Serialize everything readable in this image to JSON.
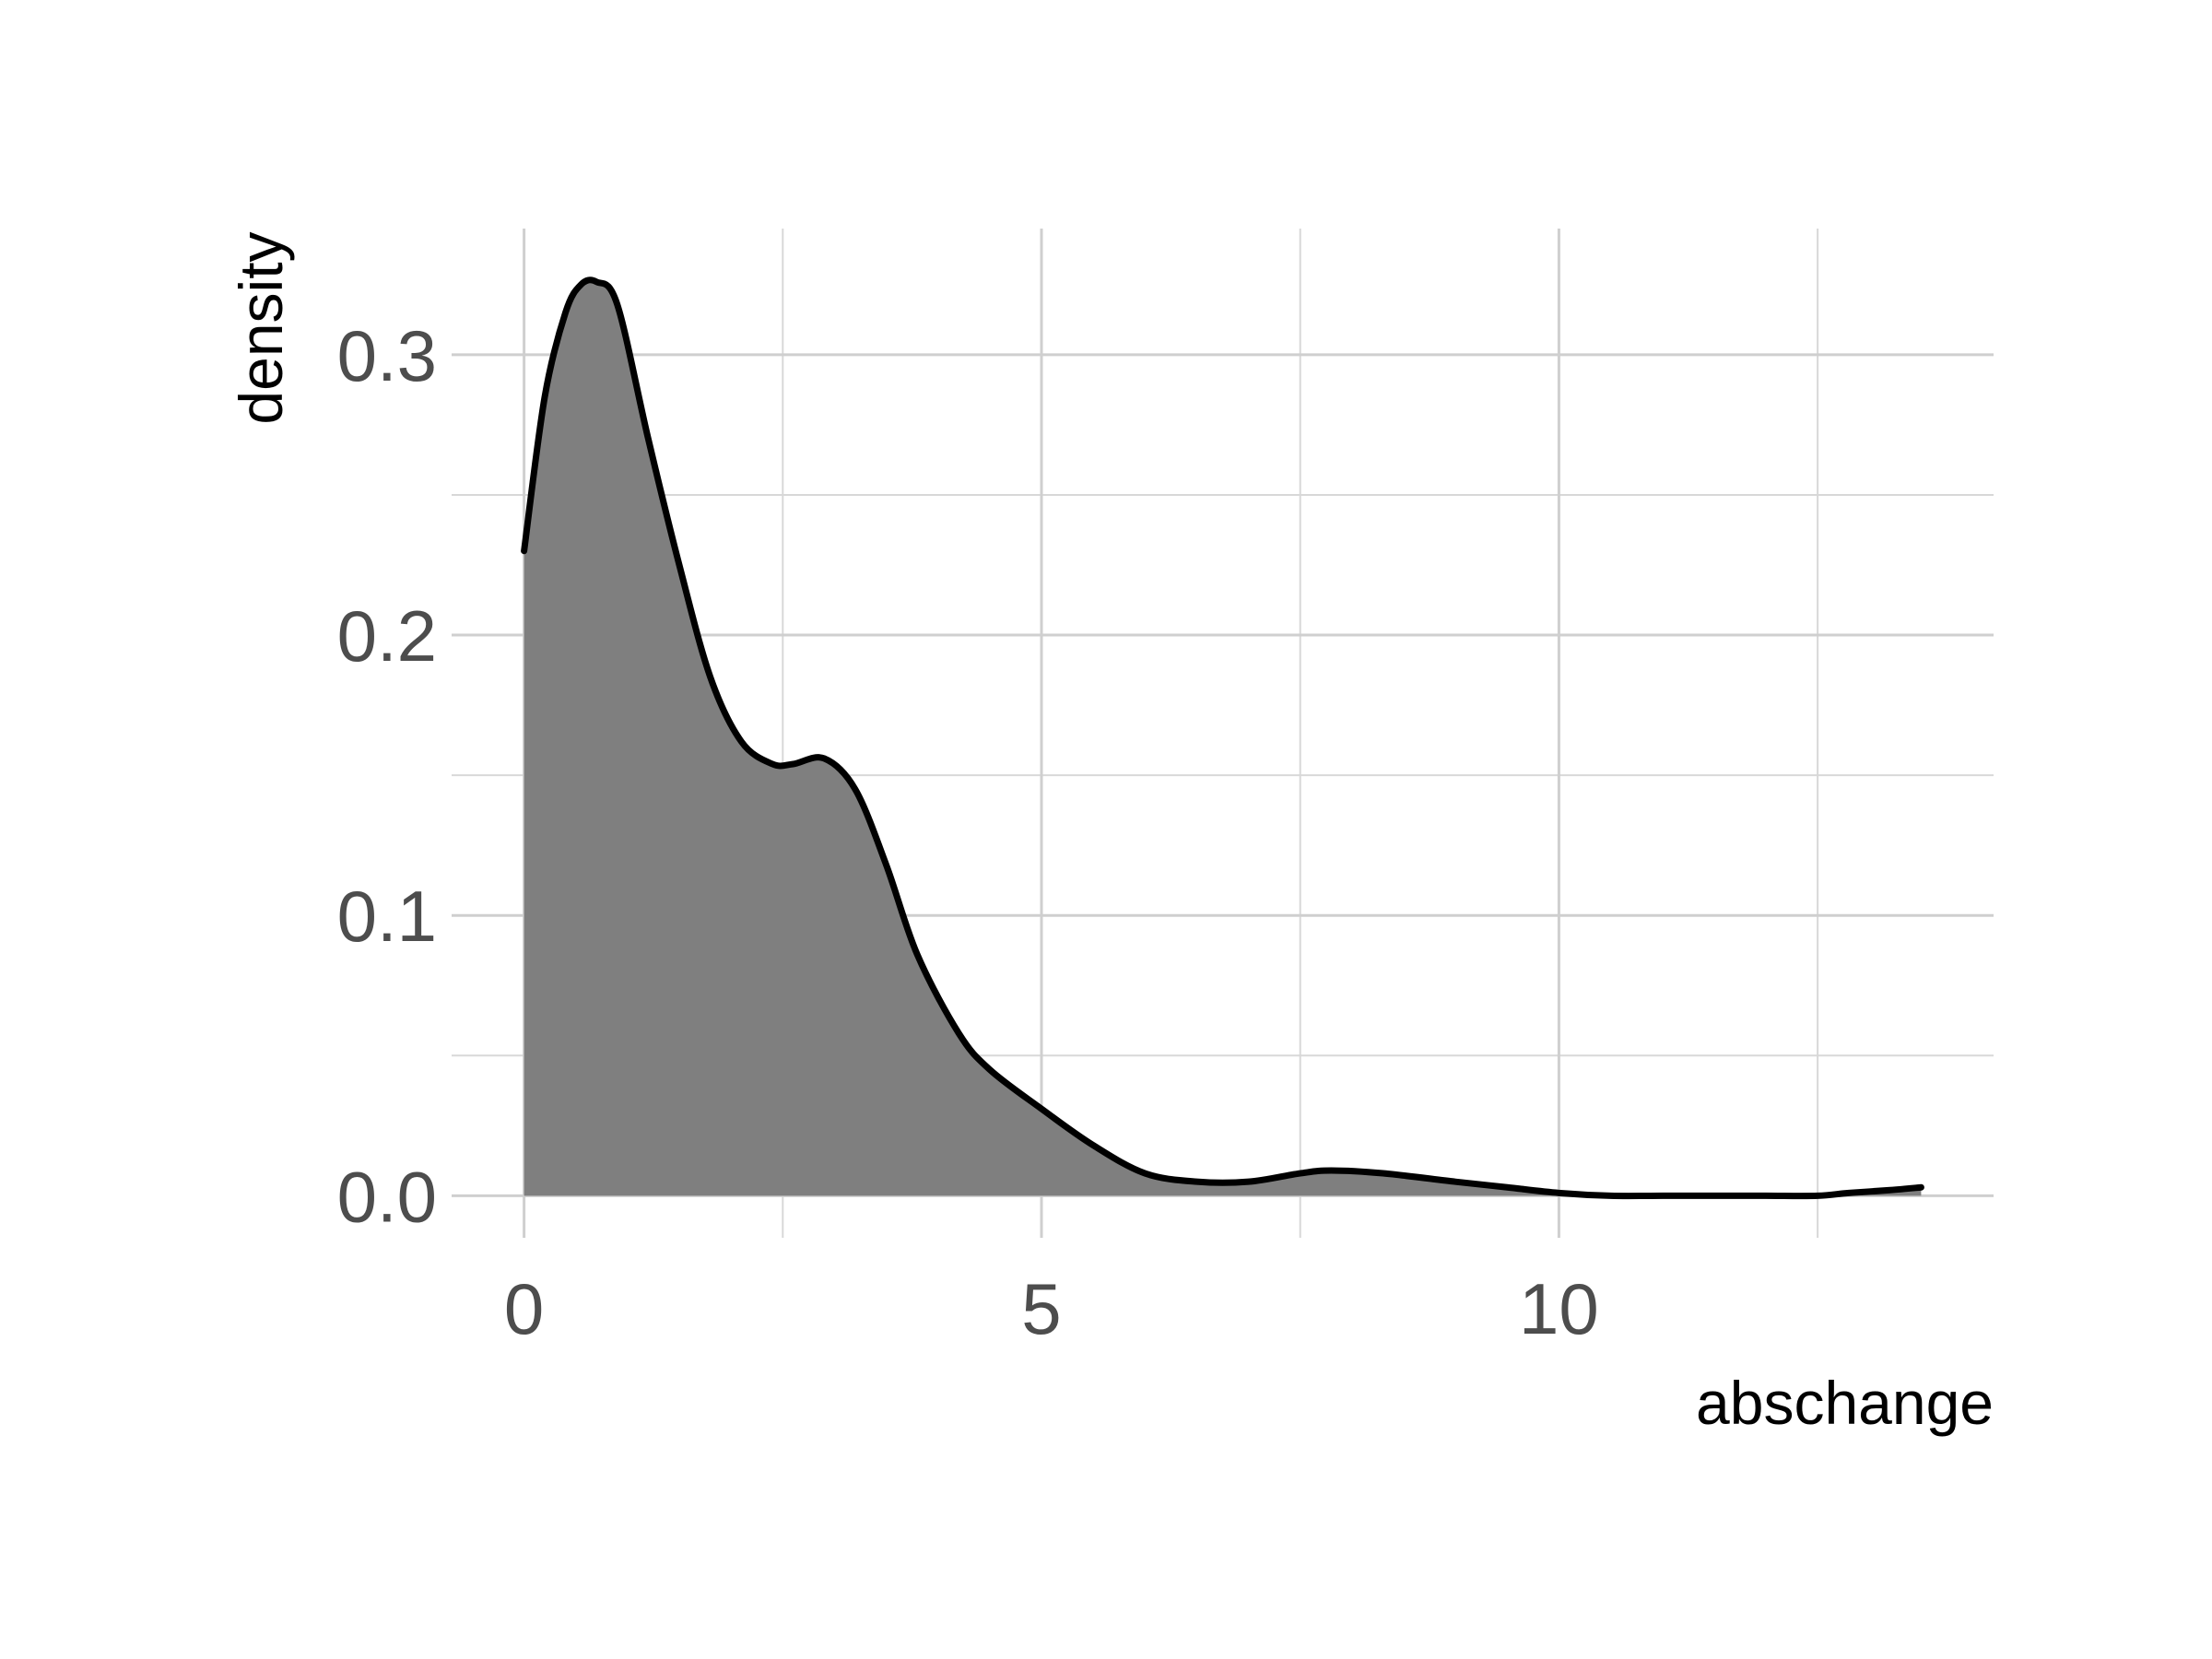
{
  "chart_data": {
    "type": "area",
    "title": "",
    "xlabel": "abschange",
    "ylabel": "density",
    "xlim": [
      -0.7,
      14.2
    ],
    "ylim": [
      -0.015,
      0.345
    ],
    "grid": true,
    "legend": "none",
    "x_ticks": [
      0,
      5,
      10
    ],
    "x_tick_labels": [
      "0",
      "5",
      "10"
    ],
    "x_minor_ticks": [
      2.5,
      7.5,
      12.5
    ],
    "y_ticks": [
      0.0,
      0.1,
      0.2,
      0.3
    ],
    "y_tick_labels": [
      "0.0",
      "0.1",
      "0.2",
      "0.3"
    ],
    "y_minor_ticks": [
      0.05,
      0.15,
      0.25
    ],
    "colors": {
      "fill": "#7f7f7f",
      "line": "#000000",
      "grid": "#cfcfcf"
    },
    "series": [
      {
        "x": [
          0,
          0.2,
          0.4,
          0.55,
          0.7,
          0.9,
          1.2,
          1.5,
          1.8,
          2.1,
          2.4,
          2.6,
          2.9,
          3.2,
          3.5,
          3.8,
          4.2,
          4.5,
          5.0,
          5.5,
          6.0,
          6.5,
          7.0,
          7.5,
          7.8,
          8.3,
          9.0,
          9.5,
          10.0,
          10.5,
          11.0,
          11.5,
          12.0,
          12.5,
          12.8,
          13.2,
          13.5
        ],
        "y": [
          0.23,
          0.285,
          0.315,
          0.325,
          0.326,
          0.318,
          0.27,
          0.225,
          0.185,
          0.162,
          0.154,
          0.154,
          0.156,
          0.145,
          0.118,
          0.086,
          0.058,
          0.045,
          0.031,
          0.018,
          0.008,
          0.005,
          0.005,
          0.008,
          0.009,
          0.008,
          0.005,
          0.003,
          0.001,
          0.0,
          0.0,
          0.0,
          0.0,
          0.0,
          0.001,
          0.002,
          0.003
        ]
      }
    ]
  }
}
